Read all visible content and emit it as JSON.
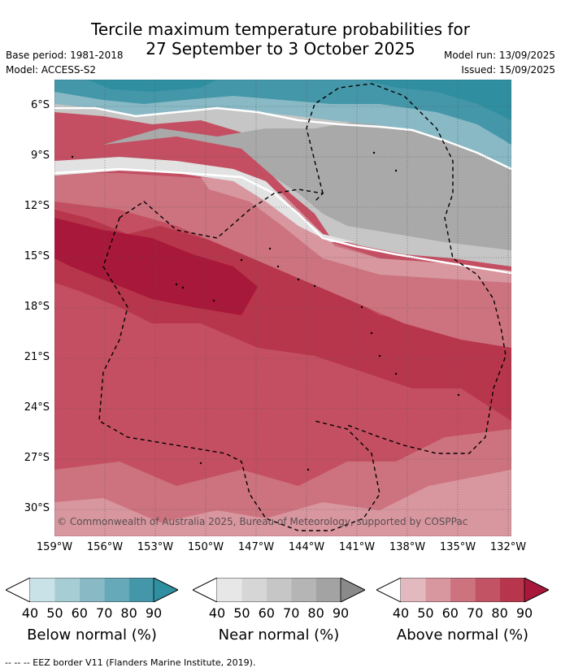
{
  "title_line1": "Tercile maximum temperature probabilities for",
  "title_line2": "27 September to 3 October 2025",
  "base_period": "Base period: 1981-2018",
  "model": "Model: ACCESS-S2",
  "model_run": "Model run: 13/09/2025",
  "issued": "Issued: 15/09/2025",
  "copyright": "© Commonwealth of Australia 2025, Bureau of Meteorology, supported by COSPPac",
  "lat_labels": [
    "6°S",
    "9°S",
    "12°S",
    "15°S",
    "18°S",
    "21°S",
    "24°S",
    "27°S",
    "30°S"
  ],
  "lon_labels": [
    "159°W",
    "156°W",
    "153°W",
    "150°W",
    "147°W",
    "144°W",
    "141°W",
    "138°W",
    "135°W",
    "132°W"
  ],
  "colorbars": [
    {
      "label": "Below normal (%)",
      "ticks": [
        "40",
        "50",
        "60",
        "70",
        "80",
        "90"
      ],
      "colors": [
        "#c9e2e8",
        "#a6ccd4",
        "#88b9c5",
        "#66a9b9",
        "#4497a8",
        "#2f8fa0"
      ]
    },
    {
      "label": "Near normal (%)",
      "ticks": [
        "40",
        "50",
        "60",
        "70",
        "80",
        "90"
      ],
      "colors": [
        "#e7e7e7",
        "#d6d6d6",
        "#c6c6c6",
        "#b5b5b5",
        "#a3a3a3",
        "#8a8a8a"
      ]
    },
    {
      "label": "Above normal (%)",
      "ticks": [
        "40",
        "50",
        "60",
        "70",
        "80",
        "90"
      ],
      "colors": [
        "#e3b9c0",
        "#d8969f",
        "#cc737f",
        "#c15365",
        "#b7364b",
        "#a8183a"
      ]
    }
  ],
  "footer": "--  --  -- EEZ border V11 (Flanders Marine Institute, 2019)."
}
